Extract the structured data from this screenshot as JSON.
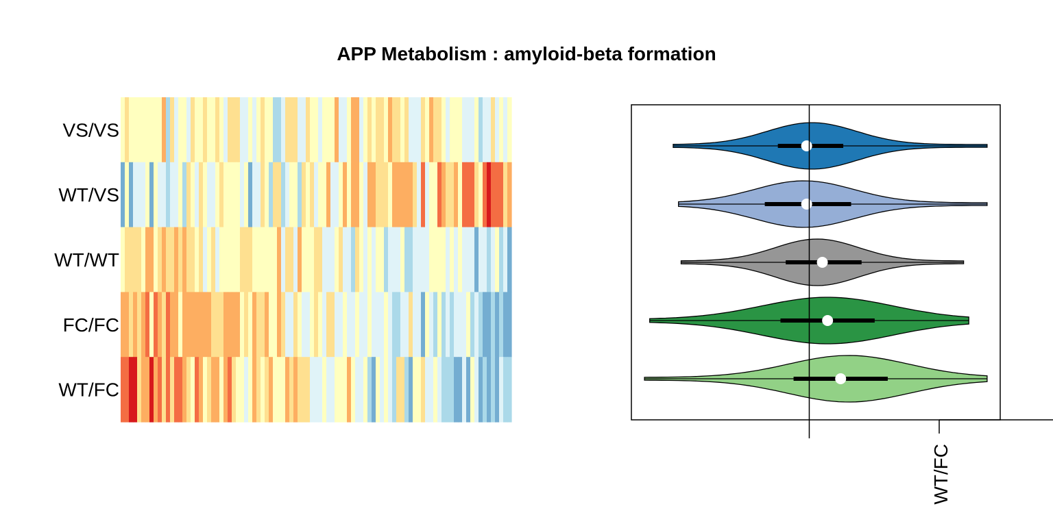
{
  "title": "APP Metabolism : amyloid-beta formation",
  "colors": {
    "spectral": [
      "#d7191c",
      "#f46d43",
      "#fdae61",
      "#fee090",
      "#ffffbf",
      "#e0f3f8",
      "#abd9e9",
      "#74add1",
      "#4575b4"
    ]
  },
  "chart_data": [
    {
      "type": "heatmap",
      "rows": [
        "VS/VS",
        "WT/VS",
        "WT/WT",
        "FC/FC",
        "WT/FC"
      ],
      "n_columns": 95,
      "seed": 7,
      "row_profiles": [
        {
          "start": 4.2,
          "end": 4.0,
          "noise": 1.5
        },
        {
          "start": 5.6,
          "end": 2.2,
          "noise": 1.6
        },
        {
          "start": 3.0,
          "end": 5.4,
          "noise": 1.2
        },
        {
          "start": 1.7,
          "end": 6.4,
          "noise": 1.3
        },
        {
          "start": 1.4,
          "end": 6.2,
          "noise": 1.6
        }
      ]
    },
    {
      "type": "violin",
      "orientation": "horizontal",
      "groups": [
        {
          "name": "VS/VS",
          "color": "#1f78b4",
          "min": -0.52,
          "max": 0.68,
          "q1": -0.12,
          "median": -0.01,
          "q3": 0.13,
          "spread": 0.17,
          "peak": 0.01
        },
        {
          "name": "WT/VS",
          "color": "#95aed6",
          "min": -0.5,
          "max": 0.68,
          "q1": -0.17,
          "median": -0.01,
          "q3": 0.16,
          "spread": 0.19,
          "peak": -0.02
        },
        {
          "name": "WT/WT",
          "color": "#969696",
          "min": -0.49,
          "max": 0.59,
          "q1": -0.09,
          "median": 0.05,
          "q3": 0.2,
          "spread": 0.16,
          "peak": 0.03
        },
        {
          "name": "FC/FC",
          "color": "#2a9444",
          "min": -0.61,
          "max": 0.61,
          "q1": -0.11,
          "median": 0.07,
          "q3": 0.25,
          "spread": 0.25,
          "peak": 0.07
        },
        {
          "name": "WT/FC",
          "color": "#92d186",
          "min": -0.63,
          "max": 0.68,
          "q1": -0.06,
          "median": 0.12,
          "q3": 0.3,
          "spread": 0.23,
          "peak": 0.15
        }
      ],
      "xlim": [
        -0.68,
        0.73
      ],
      "reference_line": 0,
      "tick_label": "WT/FC"
    }
  ]
}
